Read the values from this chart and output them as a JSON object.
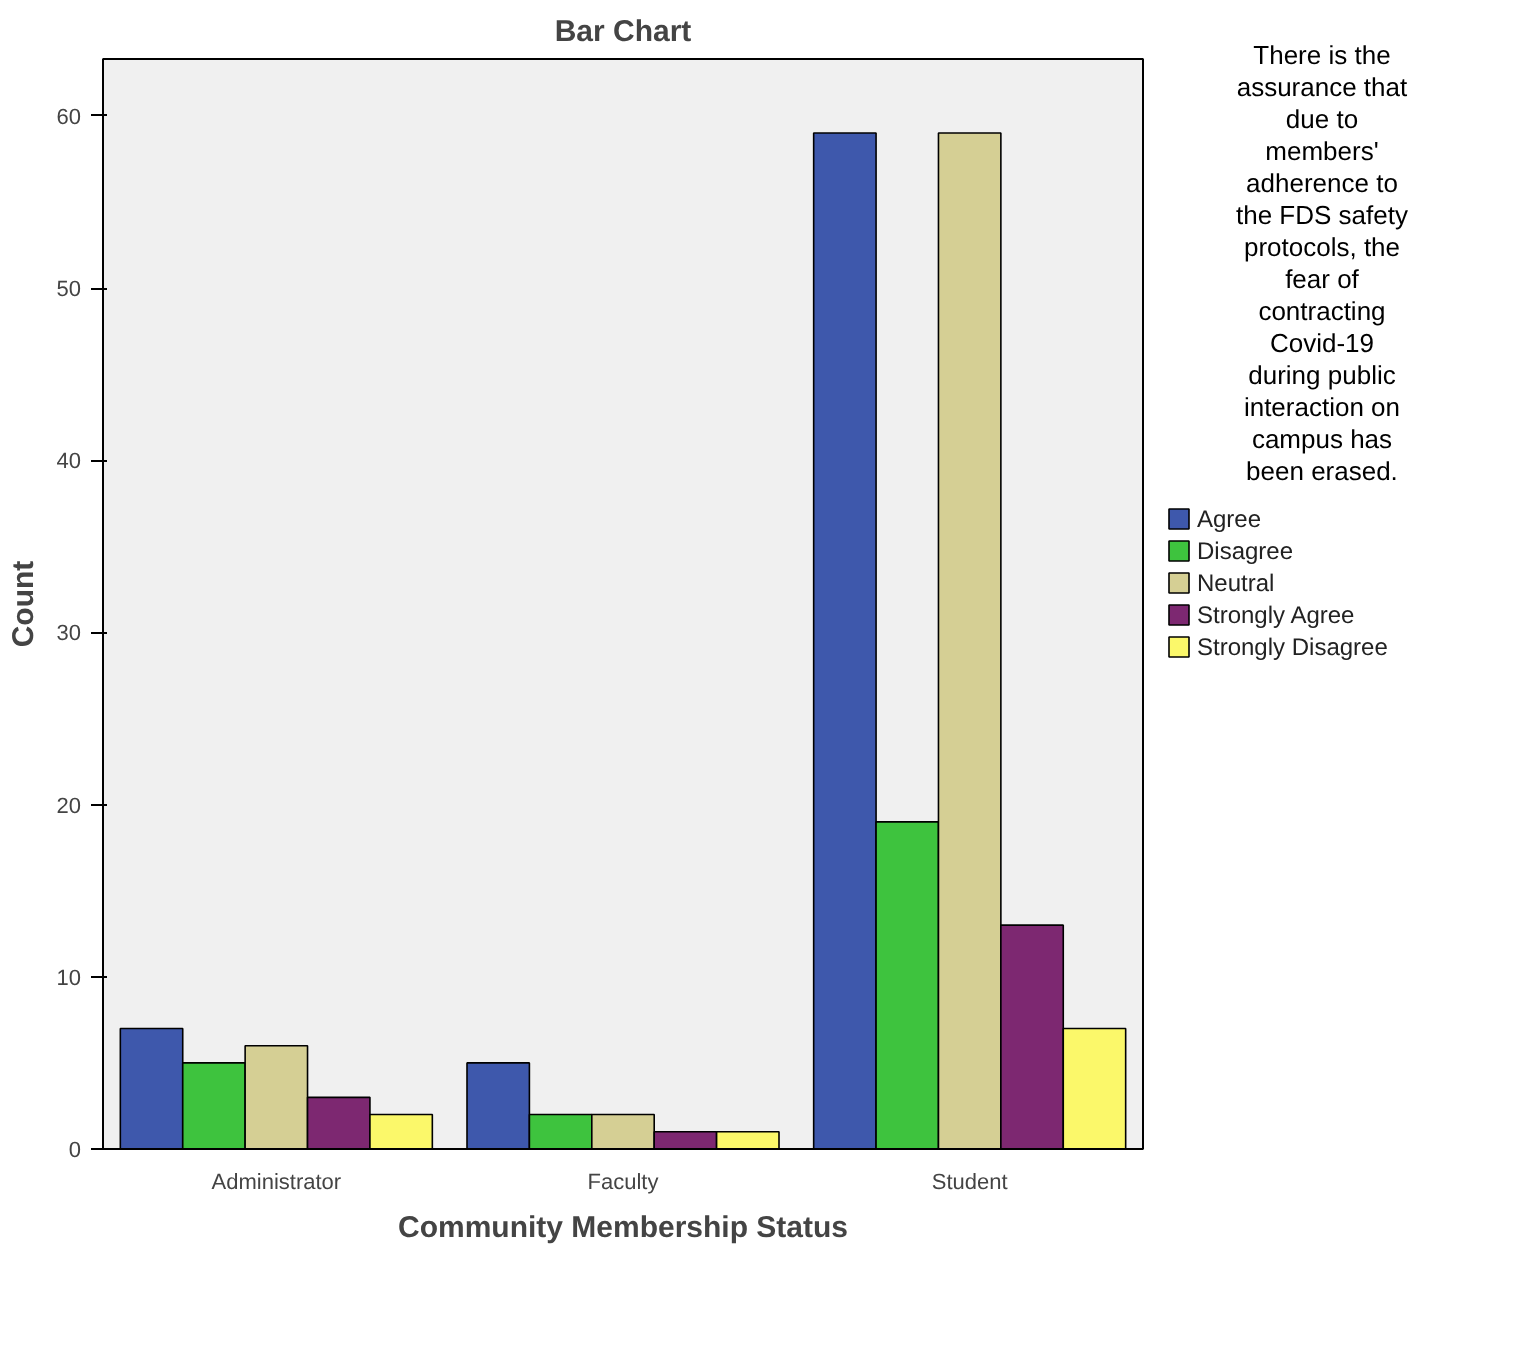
{
  "chart_data": {
    "type": "bar",
    "title": "Bar Chart",
    "xlabel": "Community Membership Status",
    "ylabel": "Count",
    "legend_title": "There is the assurance that due to members' adherence to the FDS safety protocols, the fear of contracting Covid-19 during public interaction on campus has been erased.",
    "categories": [
      "Administrator",
      "Faculty",
      "Student"
    ],
    "series": [
      {
        "name": "Agree",
        "color": "#3e58ac",
        "values": [
          7,
          5,
          59
        ]
      },
      {
        "name": "Disagree",
        "color": "#3ec33e",
        "values": [
          5,
          2,
          19
        ]
      },
      {
        "name": "Neutral",
        "color": "#d5cf94",
        "values": [
          6,
          2,
          59
        ]
      },
      {
        "name": "Strongly Agree",
        "color": "#7d2871",
        "values": [
          3,
          1,
          13
        ]
      },
      {
        "name": "Strongly Disagree",
        "color": "#fbf86a",
        "values": [
          2,
          1,
          7
        ]
      }
    ],
    "ylim": [
      0,
      63.3
    ],
    "yticks": [
      0,
      10,
      20,
      30,
      40,
      50,
      60
    ],
    "grid": false,
    "legend": "right"
  }
}
